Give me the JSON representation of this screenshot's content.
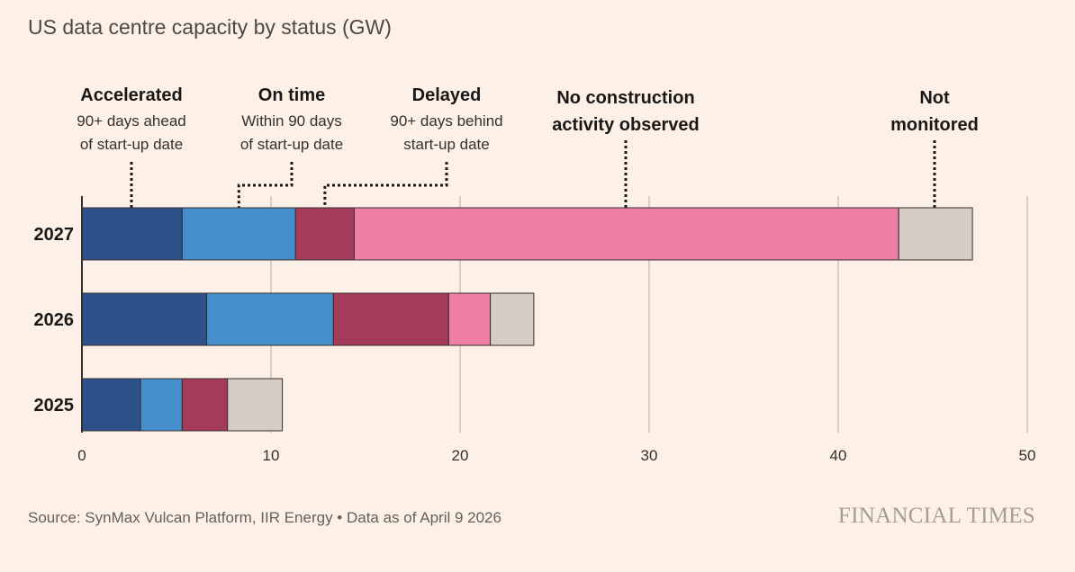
{
  "title": "US data centre capacity by status (GW)",
  "source": "Source: SynMax Vulcan Platform, IIR Energy • Data as of April 9 2026",
  "logo_text": "FINANCIAL TIMES",
  "colors": {
    "background": "#FDF1E7",
    "accelerated": "#2E5189",
    "on_time": "#448ECB",
    "delayed": "#A43B5A",
    "no_construction": "#EE7EA5",
    "not_monitored": "#D7CCC4",
    "gridline": "#D9CDC4"
  },
  "chart_data": {
    "type": "bar",
    "orientation": "horizontal",
    "stacked": true,
    "title": "US data centre capacity by status (GW)",
    "xlabel": "",
    "ylabel": "",
    "xlim": [
      0,
      50
    ],
    "xticks": [
      0,
      10,
      20,
      30,
      40,
      50
    ],
    "grid": true,
    "categories": [
      "2027",
      "2026",
      "2025"
    ],
    "series": [
      {
        "name": "Accelerated",
        "note": [
          "90+ days ahead",
          "of start-up date"
        ],
        "color": "#2E5189",
        "values": [
          5.3,
          6.6,
          3.1
        ]
      },
      {
        "name": "On time",
        "note": [
          "Within 90 days",
          "of start-up date"
        ],
        "color": "#448ECB",
        "values": [
          6.0,
          6.7,
          2.2
        ]
      },
      {
        "name": "Delayed",
        "note": [
          "90+ days behind",
          "start-up date"
        ],
        "color": "#A43B5A",
        "values": [
          3.1,
          6.1,
          2.4
        ]
      },
      {
        "name": "No construction activity observed",
        "note": [],
        "color": "#EE7EA5",
        "values": [
          28.8,
          2.2,
          0
        ]
      },
      {
        "name": "Not monitored",
        "note": [],
        "color": "#D7CCC4",
        "values": [
          3.9,
          2.3,
          2.9
        ]
      }
    ]
  }
}
